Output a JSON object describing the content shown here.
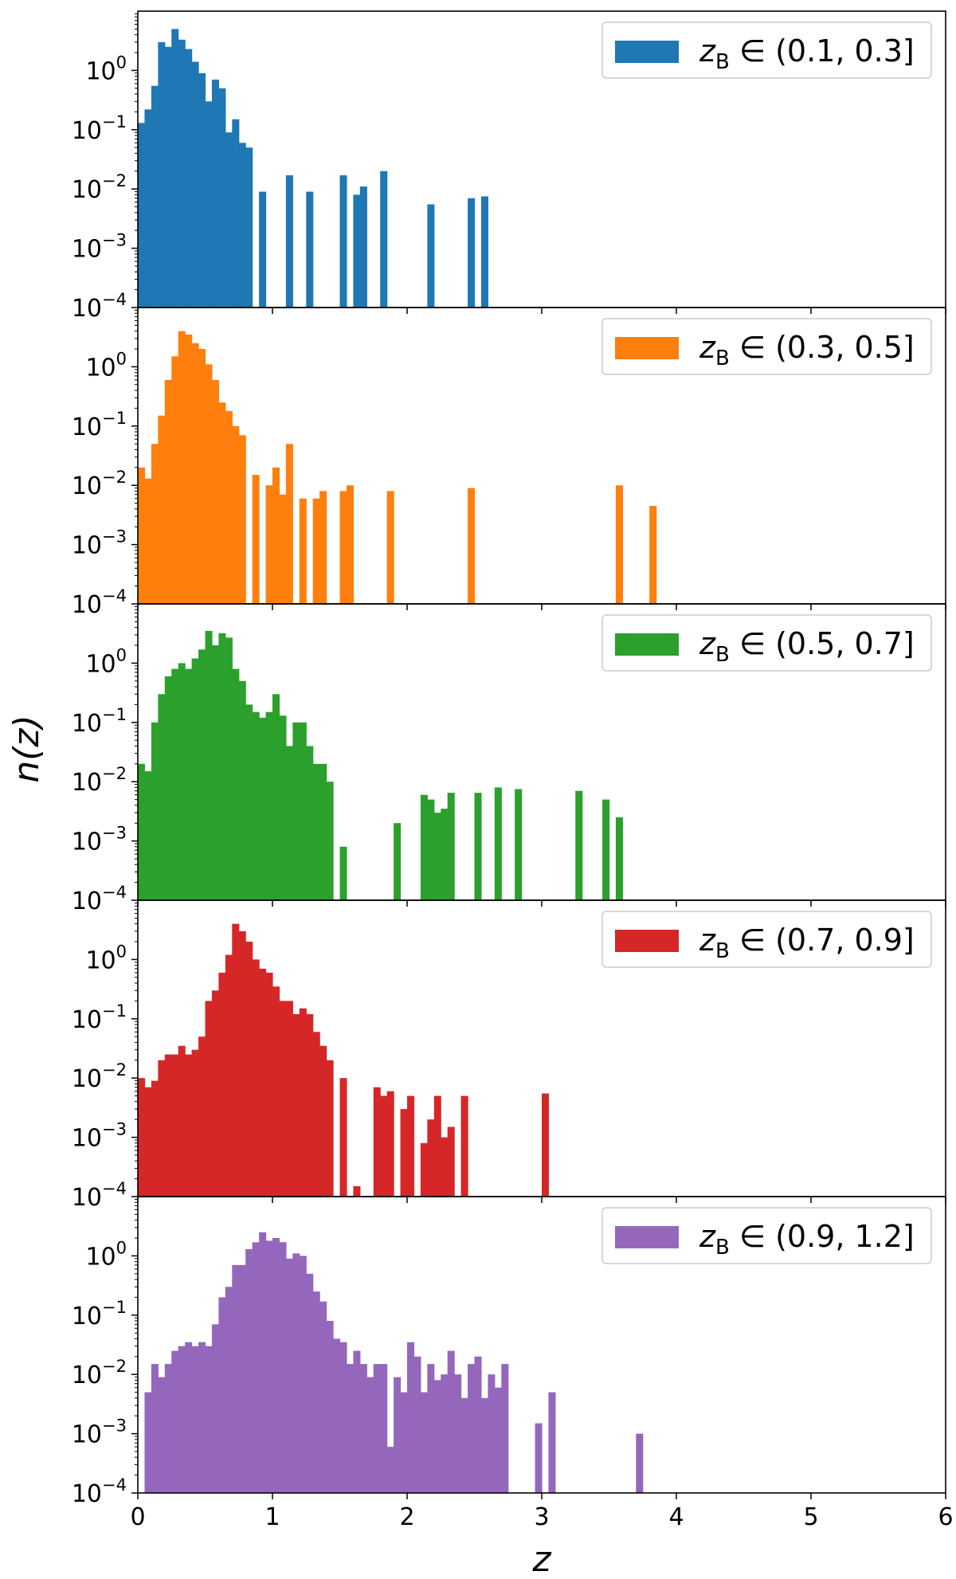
{
  "figure": {
    "ylabel": "n(z)",
    "xlabel": "z",
    "xticks": [
      "0",
      "1",
      "2",
      "3",
      "4",
      "5",
      "6"
    ],
    "yticks": [
      {
        "base": "10",
        "exp": "0"
      },
      {
        "base": "10",
        "exp": "−1"
      },
      {
        "base": "10",
        "exp": "−2"
      },
      {
        "base": "10",
        "exp": "−3"
      },
      {
        "base": "10",
        "exp": "−4"
      }
    ]
  },
  "chart_data": [
    {
      "type": "bar",
      "panel": 1,
      "color": "#1f77b4",
      "legend": {
        "var": "z",
        "sub": "B",
        "rel": "∈",
        "range": "(0.1, 0.3]"
      },
      "xlim": [
        0,
        6
      ],
      "ylim": [
        0.0001,
        10
      ],
      "yscale": "log",
      "legend_position": "upper right",
      "bin_width": 0.05,
      "bars": [
        [
          0.0,
          0.13
        ],
        [
          0.05,
          0.22
        ],
        [
          0.1,
          0.55
        ],
        [
          0.15,
          3.0
        ],
        [
          0.2,
          2.5
        ],
        [
          0.25,
          5.0
        ],
        [
          0.3,
          3.3
        ],
        [
          0.35,
          2.3
        ],
        [
          0.4,
          1.4
        ],
        [
          0.45,
          0.9
        ],
        [
          0.5,
          0.3
        ],
        [
          0.55,
          0.7
        ],
        [
          0.6,
          0.5
        ],
        [
          0.65,
          0.09
        ],
        [
          0.7,
          0.15
        ],
        [
          0.75,
          0.06
        ],
        [
          0.8,
          0.05
        ],
        [
          0.9,
          0.009
        ],
        [
          1.1,
          0.017
        ],
        [
          1.25,
          0.009
        ],
        [
          1.5,
          0.017
        ],
        [
          1.6,
          0.008
        ],
        [
          1.65,
          0.011
        ],
        [
          1.8,
          0.02
        ],
        [
          2.15,
          0.0055
        ],
        [
          2.45,
          0.007
        ],
        [
          2.55,
          0.0075
        ]
      ]
    },
    {
      "type": "bar",
      "panel": 2,
      "color": "#ff7f0e",
      "legend": {
        "var": "z",
        "sub": "B",
        "rel": "∈",
        "range": "(0.3, 0.5]"
      },
      "xlim": [
        0,
        6
      ],
      "ylim": [
        0.0001,
        10
      ],
      "yscale": "log",
      "legend_position": "upper right",
      "bin_width": 0.05,
      "bars": [
        [
          0.0,
          0.02
        ],
        [
          0.05,
          0.013
        ],
        [
          0.1,
          0.05
        ],
        [
          0.15,
          0.15
        ],
        [
          0.2,
          0.6
        ],
        [
          0.25,
          1.5
        ],
        [
          0.3,
          4.0
        ],
        [
          0.35,
          3.5
        ],
        [
          0.4,
          2.5
        ],
        [
          0.45,
          2.0
        ],
        [
          0.5,
          1.1
        ],
        [
          0.55,
          0.6
        ],
        [
          0.6,
          0.25
        ],
        [
          0.65,
          0.18
        ],
        [
          0.7,
          0.1
        ],
        [
          0.75,
          0.07
        ],
        [
          0.85,
          0.015
        ],
        [
          0.95,
          0.01
        ],
        [
          1.0,
          0.02
        ],
        [
          1.05,
          0.007
        ],
        [
          1.1,
          0.05
        ],
        [
          1.2,
          0.006
        ],
        [
          1.3,
          0.006
        ],
        [
          1.35,
          0.008
        ],
        [
          1.5,
          0.008
        ],
        [
          1.55,
          0.01
        ],
        [
          1.85,
          0.008
        ],
        [
          2.45,
          0.009
        ],
        [
          3.55,
          0.01
        ],
        [
          3.8,
          0.0045
        ]
      ]
    },
    {
      "type": "bar",
      "panel": 3,
      "color": "#2ca02c",
      "legend": {
        "var": "z",
        "sub": "B",
        "rel": "∈",
        "range": "(0.5, 0.7]"
      },
      "xlim": [
        0,
        6
      ],
      "ylim": [
        0.0001,
        10
      ],
      "yscale": "log",
      "legend_position": "upper right",
      "bin_width": 0.05,
      "bars": [
        [
          0.0,
          0.02
        ],
        [
          0.05,
          0.015
        ],
        [
          0.1,
          0.1
        ],
        [
          0.15,
          0.3
        ],
        [
          0.2,
          0.6
        ],
        [
          0.25,
          0.8
        ],
        [
          0.3,
          1.0
        ],
        [
          0.35,
          0.8
        ],
        [
          0.4,
          1.2
        ],
        [
          0.45,
          1.7
        ],
        [
          0.5,
          3.5
        ],
        [
          0.55,
          2.0
        ],
        [
          0.6,
          3.2
        ],
        [
          0.65,
          2.7
        ],
        [
          0.7,
          0.8
        ],
        [
          0.75,
          0.5
        ],
        [
          0.8,
          0.2
        ],
        [
          0.85,
          0.15
        ],
        [
          0.9,
          0.12
        ],
        [
          0.95,
          0.15
        ],
        [
          1.0,
          0.3
        ],
        [
          1.05,
          0.13
        ],
        [
          1.1,
          0.04
        ],
        [
          1.15,
          0.1
        ],
        [
          1.2,
          0.1
        ],
        [
          1.25,
          0.04
        ],
        [
          1.3,
          0.02
        ],
        [
          1.35,
          0.02
        ],
        [
          1.4,
          0.01
        ],
        [
          1.5,
          0.0008
        ],
        [
          1.9,
          0.002
        ],
        [
          2.1,
          0.006
        ],
        [
          2.15,
          0.005
        ],
        [
          2.2,
          0.003
        ],
        [
          2.25,
          0.0035
        ],
        [
          2.3,
          0.0065
        ],
        [
          2.5,
          0.0065
        ],
        [
          2.65,
          0.008
        ],
        [
          2.8,
          0.0075
        ],
        [
          3.25,
          0.007
        ],
        [
          3.45,
          0.005
        ],
        [
          3.55,
          0.0025
        ]
      ]
    },
    {
      "type": "bar",
      "panel": 4,
      "color": "#d62728",
      "legend": {
        "var": "z",
        "sub": "B",
        "rel": "∈",
        "range": "(0.7, 0.9]"
      },
      "xlim": [
        0,
        6
      ],
      "ylim": [
        0.0001,
        10
      ],
      "yscale": "log",
      "legend_position": "upper right",
      "bin_width": 0.05,
      "bars": [
        [
          0.0,
          0.01
        ],
        [
          0.05,
          0.007
        ],
        [
          0.1,
          0.009
        ],
        [
          0.15,
          0.02
        ],
        [
          0.2,
          0.025
        ],
        [
          0.25,
          0.025
        ],
        [
          0.3,
          0.035
        ],
        [
          0.35,
          0.025
        ],
        [
          0.4,
          0.03
        ],
        [
          0.45,
          0.05
        ],
        [
          0.5,
          0.2
        ],
        [
          0.55,
          0.3
        ],
        [
          0.6,
          0.6
        ],
        [
          0.65,
          1.2
        ],
        [
          0.7,
          4.0
        ],
        [
          0.75,
          3.0
        ],
        [
          0.8,
          2.0
        ],
        [
          0.85,
          1.0
        ],
        [
          0.9,
          0.7
        ],
        [
          0.95,
          0.6
        ],
        [
          1.0,
          0.35
        ],
        [
          1.05,
          0.2
        ],
        [
          1.1,
          0.2
        ],
        [
          1.15,
          0.12
        ],
        [
          1.2,
          0.15
        ],
        [
          1.25,
          0.12
        ],
        [
          1.3,
          0.06
        ],
        [
          1.35,
          0.035
        ],
        [
          1.4,
          0.02
        ],
        [
          1.5,
          0.01
        ],
        [
          1.6,
          0.00015
        ],
        [
          1.75,
          0.007
        ],
        [
          1.8,
          0.005
        ],
        [
          1.85,
          0.006
        ],
        [
          1.95,
          0.003
        ],
        [
          2.0,
          0.005
        ],
        [
          2.1,
          0.0008
        ],
        [
          2.15,
          0.002
        ],
        [
          2.2,
          0.005
        ],
        [
          2.25,
          0.001
        ],
        [
          2.3,
          0.0015
        ],
        [
          2.4,
          0.005
        ],
        [
          3.0,
          0.0055
        ]
      ]
    },
    {
      "type": "bar",
      "panel": 5,
      "color": "#9467bd",
      "legend": {
        "var": "z",
        "sub": "B",
        "rel": "∈",
        "range": "(0.9, 1.2]"
      },
      "xlim": [
        0,
        6
      ],
      "ylim": [
        0.0001,
        10
      ],
      "yscale": "log",
      "legend_position": "upper right",
      "bin_width": 0.05,
      "bars": [
        [
          0.05,
          0.005
        ],
        [
          0.1,
          0.015
        ],
        [
          0.15,
          0.009
        ],
        [
          0.2,
          0.015
        ],
        [
          0.25,
          0.025
        ],
        [
          0.3,
          0.03
        ],
        [
          0.35,
          0.035
        ],
        [
          0.4,
          0.03
        ],
        [
          0.45,
          0.035
        ],
        [
          0.5,
          0.03
        ],
        [
          0.55,
          0.07
        ],
        [
          0.6,
          0.2
        ],
        [
          0.65,
          0.3
        ],
        [
          0.7,
          0.7
        ],
        [
          0.75,
          0.7
        ],
        [
          0.8,
          1.3
        ],
        [
          0.85,
          1.7
        ],
        [
          0.9,
          2.5
        ],
        [
          0.95,
          1.8
        ],
        [
          1.0,
          2.0
        ],
        [
          1.05,
          1.7
        ],
        [
          1.1,
          0.9
        ],
        [
          1.15,
          1.1
        ],
        [
          1.2,
          1.0
        ],
        [
          1.25,
          0.5
        ],
        [
          1.3,
          0.25
        ],
        [
          1.35,
          0.17
        ],
        [
          1.4,
          0.08
        ],
        [
          1.45,
          0.04
        ],
        [
          1.5,
          0.035
        ],
        [
          1.55,
          0.015
        ],
        [
          1.6,
          0.025
        ],
        [
          1.65,
          0.015
        ],
        [
          1.7,
          0.009
        ],
        [
          1.75,
          0.015
        ],
        [
          1.8,
          0.015
        ],
        [
          1.85,
          0.0006
        ],
        [
          1.9,
          0.009
        ],
        [
          1.95,
          0.005
        ],
        [
          2.0,
          0.035
        ],
        [
          2.05,
          0.02
        ],
        [
          2.1,
          0.005
        ],
        [
          2.15,
          0.015
        ],
        [
          2.2,
          0.008
        ],
        [
          2.25,
          0.01
        ],
        [
          2.3,
          0.025
        ],
        [
          2.35,
          0.01
        ],
        [
          2.4,
          0.004
        ],
        [
          2.45,
          0.015
        ],
        [
          2.5,
          0.02
        ],
        [
          2.55,
          0.004
        ],
        [
          2.6,
          0.01
        ],
        [
          2.65,
          0.006
        ],
        [
          2.7,
          0.015
        ],
        [
          2.95,
          0.0015
        ],
        [
          3.05,
          0.005
        ],
        [
          3.7,
          0.001
        ]
      ]
    }
  ]
}
